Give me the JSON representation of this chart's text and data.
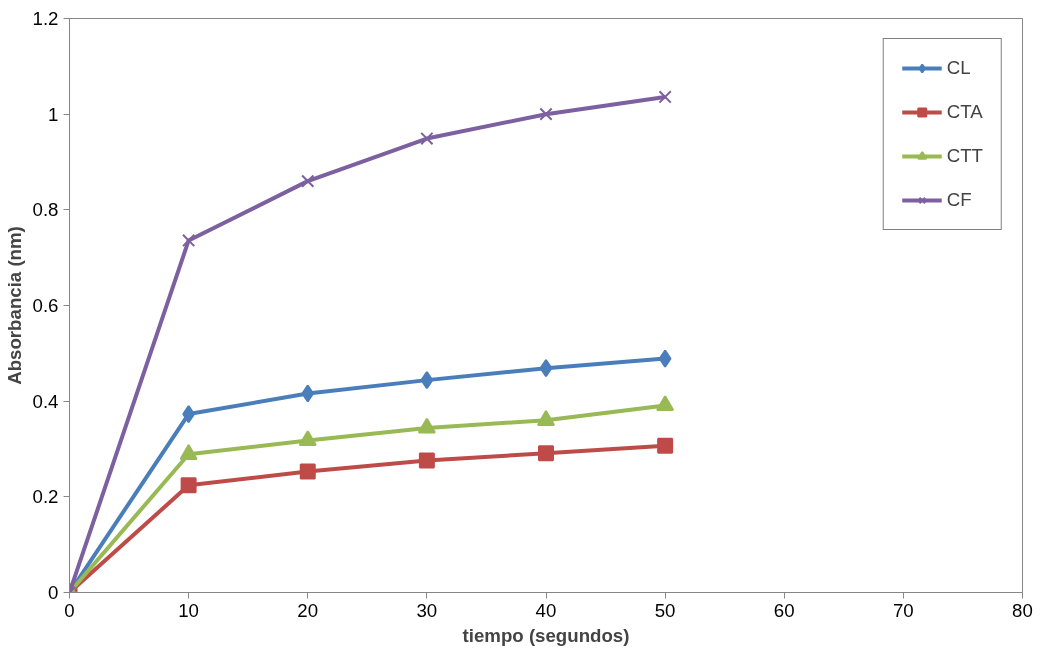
{
  "chart_data": {
    "type": "line",
    "xlabel": "tiempo (segundos)",
    "ylabel": "Absorbancia (nm)",
    "x": [
      0,
      10,
      20,
      30,
      40,
      50
    ],
    "series": [
      {
        "name": "CL",
        "color": "#4a7ebb",
        "marker": "diamond",
        "values": [
          0,
          0.373,
          0.416,
          0.444,
          0.469,
          0.489
        ]
      },
      {
        "name": "CTA",
        "color": "#be4b48",
        "marker": "square",
        "values": [
          0,
          0.224,
          0.253,
          0.276,
          0.291,
          0.307
        ]
      },
      {
        "name": "CTT",
        "color": "#98b954",
        "marker": "triangle",
        "values": [
          0,
          0.289,
          0.318,
          0.344,
          0.36,
          0.391
        ]
      },
      {
        "name": "CF",
        "color": "#7d60a0",
        "marker": "cross",
        "values": [
          0,
          0.736,
          0.86,
          0.949,
          1.0,
          1.036
        ]
      }
    ],
    "xlim": [
      0,
      80
    ],
    "xticks": [
      0,
      10,
      20,
      30,
      40,
      50,
      60,
      70,
      80
    ],
    "ylim": [
      0,
      1.2
    ],
    "yticks": [
      0,
      0.2,
      0.4,
      0.6,
      0.8,
      1,
      1.2
    ],
    "grid": false,
    "legend": "top right",
    "line_style": "solid"
  }
}
